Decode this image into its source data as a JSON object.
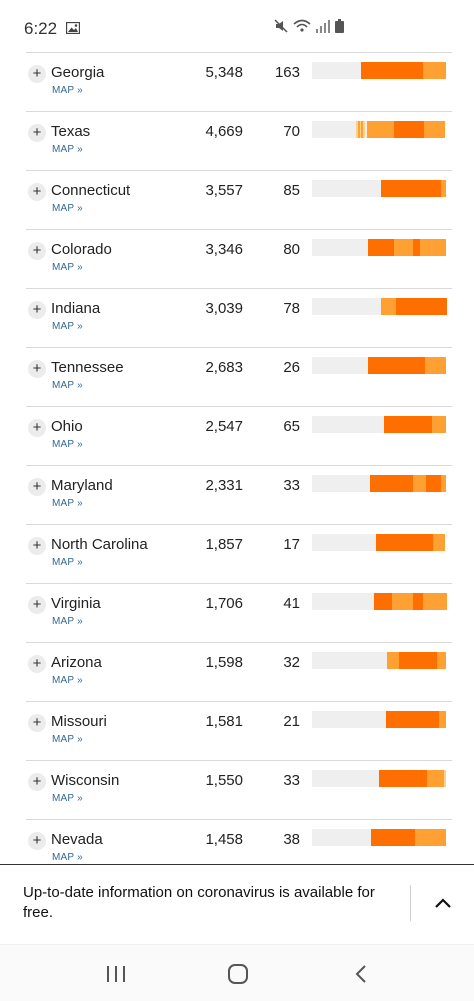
{
  "status_bar": {
    "time": "6:22",
    "icons": [
      "image-icon",
      "mute-icon",
      "wifi-icon",
      "signal-icon",
      "battery-icon"
    ]
  },
  "map_label": "MAP »",
  "expand_symbol": "+",
  "colors": {
    "dark": "#ff6f00",
    "mid": "#ffa032",
    "light": "#ffd28c",
    "empty": "#efefef"
  },
  "rows": [
    {
      "state": "Georgia",
      "cases": "5,348",
      "deaths": "163",
      "bar": "............................iiiiiiiiiiiiiiiiiiiiiiiiiiiiiiiiiiii+++++++++++++"
    },
    {
      "state": "Texas",
      "cases": "4,669",
      "deaths": "70",
      "bar": "........................-+-+-.+++++++++++++++iiiiiiiiiiiiiiii++++++++++++"
    },
    {
      "state": "Connecticut",
      "cases": "3,557",
      "deaths": "85",
      "bar": "........................................iiiiiiiiiiiiiiiiiiiiiiiiiiiiiiiiiii+++"
    },
    {
      "state": "Colorado",
      "cases": "3,346",
      "deaths": "80",
      "bar": "...................................iiiiiiiiiiiiiiii++++++++++++iiii++++++++++++++++"
    },
    {
      "state": "Indiana",
      "cases": "3,039",
      "deaths": "78",
      "bar": "..........................................+++++++++iiiiiiiiiiiiiiiiiiiiiiiiiiiiiii"
    },
    {
      "state": "Tennessee",
      "cases": "2,683",
      "deaths": "26",
      "bar": "..................................iiiiiiiiiiiiiiiiiiiiiiiiiiiiiiiiii+++++++++++++"
    },
    {
      "state": "Ohio",
      "cases": "2,547",
      "deaths": "65",
      "bar": ".............................................iiiiiiiiiiiiiiiiiiiiiiiiiiiiii+++++++++"
    },
    {
      "state": "Maryland",
      "cases": "2,331",
      "deaths": "33",
      "bar": "...................................iiiiiiiiiiiiiiiiiiiiiiiiii++++++++iiiiiiiii+++"
    },
    {
      "state": "North Carolina",
      "cases": "1,857",
      "deaths": "17",
      "bar": "..........................................iiiiiiiiiiiiiiiiiiiiiiiiiiiiiiiiiiiiii++++++++"
    },
    {
      "state": "Virginia",
      "cases": "1,706",
      "deaths": "41",
      "bar": "........................................iiiiiiiiiiii+++++++++++++iiiiiii+++++++++++++++"
    },
    {
      "state": "Arizona",
      "cases": "1,598",
      "deaths": "32",
      "bar": ".............................................+++++++iiiiiiiiiiiiiiiiiiiiiii+++++"
    },
    {
      "state": "Missouri",
      "cases": "1,581",
      "deaths": "21",
      "bar": "..............................................iiiiiiiiiiiiiiiiiiiiiiiiiiiiiiiii++++"
    },
    {
      "state": "Wisconsin",
      "cases": "1,550",
      "deaths": "33",
      "bar": "..........................................iiiiiiiiiiiiiiiiiiiiiiiiiiiiii+++++++++++-"
    },
    {
      "state": "Nevada",
      "cases": "1,458",
      "deaths": "38",
      "bar": "........................................iiiiiiiiiiiiiiiiiiiiiiiiiiiiii+++++++++++++++++++++"
    }
  ],
  "banner": {
    "text": "Up-to-date information on coronavirus is available for free."
  }
}
